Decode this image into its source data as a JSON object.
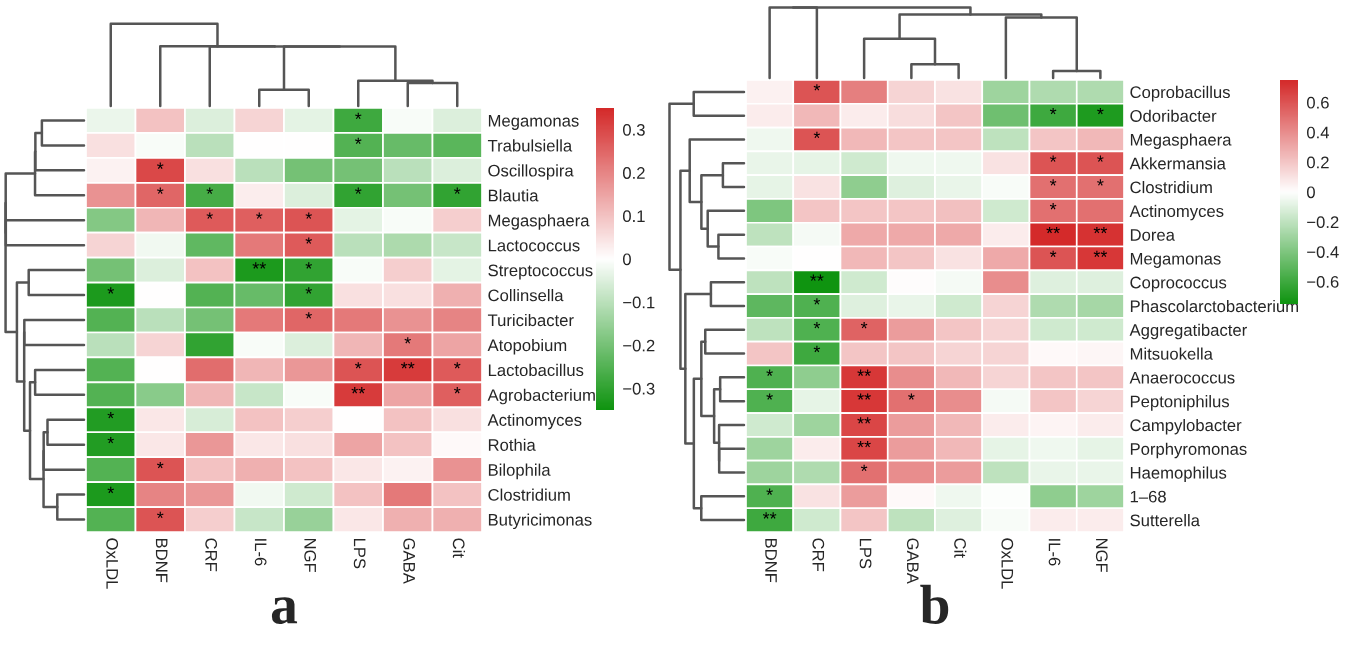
{
  "chart_data": [
    {
      "type": "heatmap",
      "title": "a",
      "categories": [
        "OxLDL",
        "BDNF",
        "CRF",
        "IL-6",
        "NGF",
        "LPS",
        "GABA",
        "Cit"
      ],
      "y_categories": [
        "Megamonas",
        "Trabulsiella",
        "Oscillospira",
        "Blautia",
        "Megasphaera",
        "Lactococcus",
        "Streptococcus",
        "Collinsella",
        "Turicibacter",
        "Atopobium",
        "Lactobacillus",
        "Agrobacterium",
        "Actinomyces",
        "Rothia",
        "Bilophila",
        "Clostridium",
        "Butyricimonas"
      ],
      "cells": [
        [
          -0.03,
          0.1,
          -0.05,
          0.07,
          -0.04,
          -0.28,
          -0.01,
          -0.05
        ],
        [
          0.05,
          -0.01,
          -0.1,
          0,
          0,
          -0.25,
          -0.22,
          -0.24
        ],
        [
          0.02,
          0.3,
          0.05,
          -0.1,
          -0.2,
          -0.2,
          -0.1,
          -0.05
        ],
        [
          0.18,
          0.25,
          -0.27,
          0.03,
          -0.05,
          -0.3,
          -0.2,
          -0.3
        ],
        [
          -0.18,
          0.12,
          0.27,
          0.26,
          0.28,
          -0.04,
          -0.01,
          0.08
        ],
        [
          0.07,
          -0.02,
          -0.23,
          0.22,
          0.27,
          -0.1,
          -0.12,
          -0.08
        ],
        [
          -0.2,
          -0.05,
          0.1,
          -0.33,
          -0.3,
          -0.01,
          0.08,
          -0.04
        ],
        [
          -0.33,
          0,
          -0.25,
          -0.22,
          -0.3,
          0.05,
          0.05,
          0.13
        ],
        [
          -0.25,
          -0.1,
          -0.2,
          0.22,
          0.25,
          0.22,
          0.18,
          0.2
        ],
        [
          -0.1,
          0.07,
          -0.3,
          -0.01,
          -0.05,
          0.12,
          0.22,
          0.15
        ],
        [
          -0.25,
          0,
          0.24,
          0.12,
          0.17,
          0.28,
          0.32,
          0.27
        ],
        [
          -0.25,
          -0.17,
          0.12,
          -0.08,
          -0.01,
          0.32,
          0.15,
          0.26
        ],
        [
          -0.32,
          0.04,
          -0.06,
          0.1,
          0.08,
          0,
          0.1,
          0.05
        ],
        [
          -0.32,
          0.04,
          0.17,
          0.04,
          0.05,
          0.15,
          0.1,
          0.01
        ],
        [
          -0.25,
          0.28,
          0.1,
          0.13,
          0.1,
          0.04,
          0.02,
          0.18
        ],
        [
          -0.33,
          0.2,
          0.17,
          -0.02,
          -0.07,
          0.1,
          0.22,
          0.1
        ],
        [
          -0.25,
          0.28,
          0.08,
          -0.08,
          -0.15,
          0.04,
          0.13,
          0.13
        ]
      ],
      "cell_labels": [
        [
          null,
          null,
          null,
          null,
          null,
          "*",
          null,
          null
        ],
        [
          null,
          null,
          null,
          null,
          null,
          "*",
          null,
          null
        ],
        [
          null,
          "*",
          null,
          null,
          null,
          null,
          null,
          null
        ],
        [
          null,
          "*",
          "*",
          null,
          null,
          "*",
          null,
          "*"
        ],
        [
          null,
          null,
          "*",
          "*",
          "*",
          null,
          null,
          null
        ],
        [
          null,
          null,
          null,
          null,
          "*",
          null,
          null,
          null
        ],
        [
          null,
          null,
          null,
          "**",
          "*",
          null,
          null,
          null
        ],
        [
          "*",
          null,
          null,
          null,
          "*",
          null,
          null,
          null
        ],
        [
          null,
          null,
          null,
          null,
          "*",
          null,
          null,
          null
        ],
        [
          null,
          null,
          null,
          null,
          null,
          null,
          "*",
          null
        ],
        [
          null,
          null,
          null,
          null,
          null,
          "*",
          "**",
          "*"
        ],
        [
          null,
          null,
          null,
          null,
          null,
          "**",
          null,
          "*"
        ],
        [
          "*",
          null,
          null,
          null,
          null,
          null,
          null,
          null
        ],
        [
          "*",
          null,
          null,
          null,
          null,
          null,
          null,
          null
        ],
        [
          null,
          "*",
          null,
          null,
          null,
          null,
          null,
          null
        ],
        [
          "*",
          null,
          null,
          null,
          null,
          null,
          null,
          null
        ],
        [
          null,
          "*",
          null,
          null,
          null,
          null,
          null,
          null
        ]
      ],
      "clim": [
        -0.35,
        0.35
      ],
      "cticks": [
        {
          "value": -0.3,
          "label": "−0.3"
        },
        {
          "value": -0.2,
          "label": "−0.2"
        },
        {
          "value": -0.1,
          "label": "−0.1"
        },
        0,
        0.1,
        0.2,
        0.3
      ]
    },
    {
      "type": "heatmap",
      "title": "b",
      "categories": [
        "BDNF",
        "CRF",
        "LPS",
        "GABA",
        "Cit",
        "OxLDL",
        "IL-6",
        "NGF"
      ],
      "y_categories": [
        "Coprobacillus",
        "Odoribacter",
        "Megasphaera",
        "Akkermansia",
        "Clostridium",
        "Actinomyces",
        "Dorea",
        "Megamonas",
        "Coprococcus",
        "Phascolarctobacterium",
        "Aggregatibacter",
        "Mitsuokella",
        "Anaerococcus",
        "Peptoniphilus",
        "Campylobacter",
        "Porphyromonas",
        "Haemophilus",
        "1–68",
        "Sutterella"
      ],
      "cells": [
        [
          0.05,
          0.6,
          0.45,
          0.15,
          0.1,
          -0.3,
          -0.25,
          -0.25
        ],
        [
          0.07,
          0.25,
          0.07,
          0.12,
          0.2,
          -0.45,
          -0.6,
          -0.7
        ],
        [
          -0.05,
          0.6,
          0.25,
          0.2,
          0.2,
          -0.2,
          0.2,
          0.25
        ],
        [
          -0.07,
          -0.08,
          -0.15,
          -0.05,
          -0.05,
          0.1,
          0.6,
          0.6
        ],
        [
          -0.08,
          0.1,
          -0.35,
          -0.1,
          -0.07,
          -0.02,
          0.5,
          0.5
        ],
        [
          -0.4,
          0.2,
          0.2,
          0.2,
          0.22,
          -0.15,
          0.5,
          0.5
        ],
        [
          -0.2,
          -0.03,
          0.3,
          0.3,
          0.3,
          0.07,
          0.75,
          0.72
        ],
        [
          -0.02,
          0,
          0.25,
          0.2,
          0.1,
          0.3,
          0.6,
          0.7
        ],
        [
          -0.2,
          -0.75,
          -0.15,
          0.01,
          -0.03,
          0.4,
          -0.1,
          -0.1
        ],
        [
          -0.5,
          -0.55,
          -0.1,
          -0.07,
          -0.15,
          0.15,
          -0.25,
          -0.28
        ],
        [
          -0.2,
          -0.55,
          0.55,
          0.35,
          0.2,
          0.15,
          -0.15,
          -0.15
        ],
        [
          0.2,
          -0.6,
          0.2,
          0.2,
          0.15,
          0.15,
          0.02,
          0.03
        ],
        [
          -0.55,
          -0.35,
          0.7,
          0.4,
          0.25,
          0.15,
          0.2,
          0.2
        ],
        [
          -0.55,
          -0.08,
          0.7,
          0.5,
          0.4,
          -0.03,
          0.2,
          0.15
        ],
        [
          -0.15,
          -0.3,
          0.65,
          0.35,
          0.25,
          0.07,
          0.04,
          0.07
        ],
        [
          -0.3,
          0.07,
          0.65,
          0.35,
          0.25,
          -0.08,
          -0.05,
          -0.08
        ],
        [
          -0.3,
          -0.25,
          0.5,
          0.4,
          0.35,
          -0.2,
          -0.07,
          -0.07
        ],
        [
          -0.55,
          0.1,
          0.35,
          0.02,
          -0.05,
          -0.01,
          -0.35,
          -0.3
        ],
        [
          -0.6,
          -0.15,
          0.2,
          -0.2,
          -0.1,
          -0.02,
          0.07,
          0.07
        ]
      ],
      "cell_labels": [
        [
          null,
          "*",
          null,
          null,
          null,
          null,
          null,
          null
        ],
        [
          null,
          null,
          null,
          null,
          null,
          null,
          "*",
          "*"
        ],
        [
          null,
          "*",
          null,
          null,
          null,
          null,
          null,
          null
        ],
        [
          null,
          null,
          null,
          null,
          null,
          null,
          "*",
          "*"
        ],
        [
          null,
          null,
          null,
          null,
          null,
          null,
          "*",
          "*"
        ],
        [
          null,
          null,
          null,
          null,
          null,
          null,
          "*",
          null
        ],
        [
          null,
          null,
          null,
          null,
          null,
          null,
          "**",
          "**"
        ],
        [
          null,
          null,
          null,
          null,
          null,
          null,
          "*",
          "**"
        ],
        [
          null,
          "**",
          null,
          null,
          null,
          null,
          null,
          null
        ],
        [
          null,
          "*",
          null,
          null,
          null,
          null,
          null,
          null
        ],
        [
          null,
          "*",
          "*",
          null,
          null,
          null,
          null,
          null
        ],
        [
          null,
          "*",
          null,
          null,
          null,
          null,
          null,
          null
        ],
        [
          "*",
          null,
          "**",
          null,
          null,
          null,
          null,
          null
        ],
        [
          "*",
          null,
          "**",
          "*",
          null,
          null,
          null,
          null
        ],
        [
          null,
          null,
          "**",
          null,
          null,
          null,
          null,
          null
        ],
        [
          null,
          null,
          "**",
          null,
          null,
          null,
          null,
          null
        ],
        [
          null,
          null,
          "*",
          null,
          null,
          null,
          null,
          null
        ],
        [
          "*",
          null,
          null,
          null,
          null,
          null,
          null,
          null
        ],
        [
          "**",
          null,
          null,
          null,
          null,
          null,
          null,
          null
        ]
      ],
      "clim": [
        -0.75,
        0.75
      ],
      "cticks": [
        {
          "value": -0.6,
          "label": "−0.6"
        },
        {
          "value": -0.4,
          "label": "−0.4"
        },
        {
          "value": -0.2,
          "label": "−0.2"
        },
        0,
        0.2,
        0.4,
        0.6
      ]
    }
  ]
}
